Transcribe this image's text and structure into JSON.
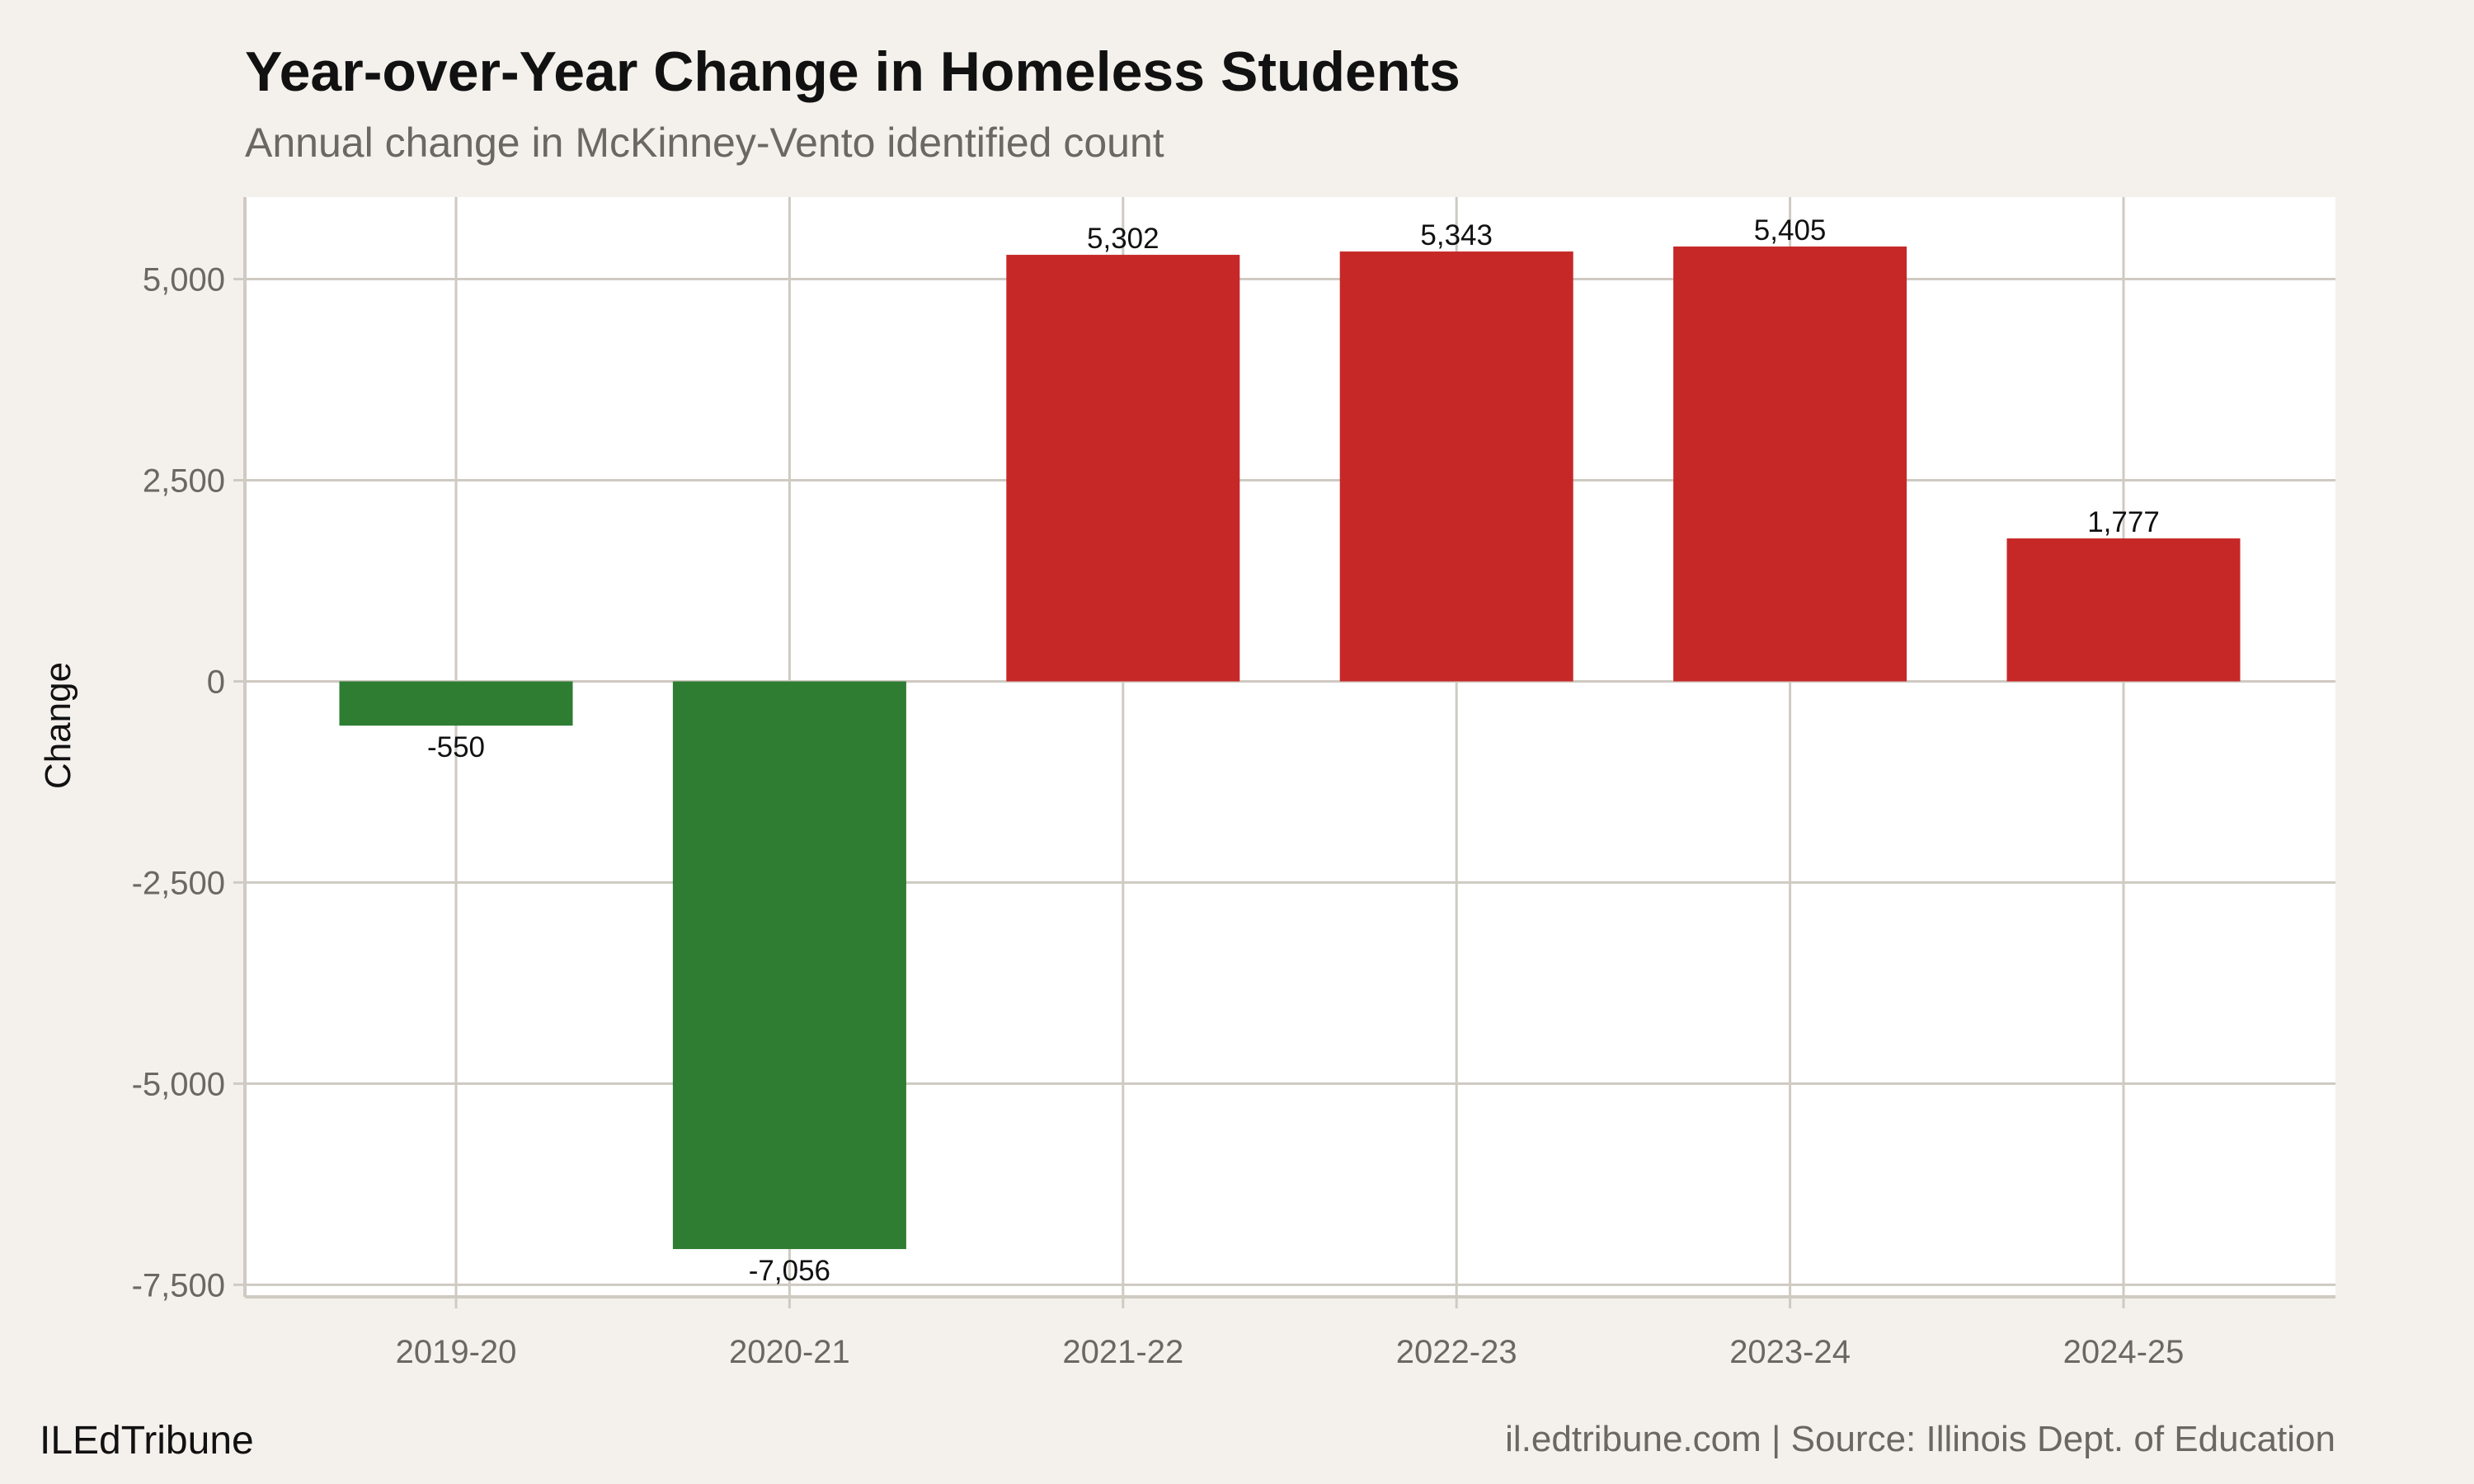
{
  "chart_data": {
    "type": "bar",
    "title": "Year-over-Year Change in Homeless Students",
    "subtitle": "Annual change in McKinney-Vento identified count",
    "xlabel": "",
    "ylabel": "Change",
    "categories": [
      "2019-20",
      "2020-21",
      "2021-22",
      "2022-23",
      "2023-24",
      "2024-25"
    ],
    "values": [
      -550,
      -7056,
      5302,
      5343,
      5405,
      1777
    ],
    "data_labels": [
      "-550",
      "-7,056",
      "5,302",
      "5,343",
      "5,405",
      "1,777"
    ],
    "ylim": [
      -7650,
      6020
    ],
    "yticks": [
      -7500,
      -5000,
      -2500,
      0,
      2500,
      5000
    ],
    "ytick_labels": [
      "-7,500",
      "-5,000",
      "-2,500",
      "0",
      "2,500",
      "5,000"
    ],
    "grid": true,
    "legend": "none",
    "colors": {
      "negative": "#2e7d32",
      "positive": "#c62828",
      "grid": "#cfcac2",
      "panel": "#ffffff",
      "background": "#f4f1ec"
    }
  },
  "footer": {
    "brand": "ILEdTribune",
    "source": "il.edtribune.com | Source: Illinois Dept. of Education"
  }
}
